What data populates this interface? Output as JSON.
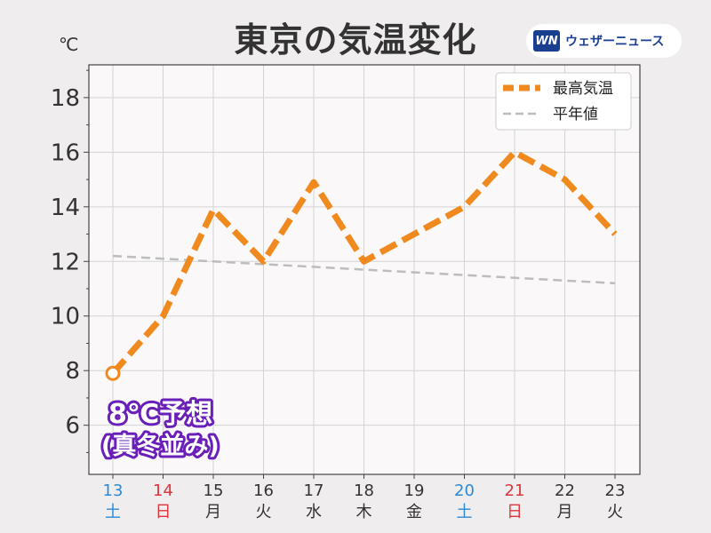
{
  "title": "東京の気温変化",
  "unit": "℃",
  "brand": {
    "logo": "WN",
    "name": "ウェザーニュース"
  },
  "colors": {
    "max_line": "#f08a1e",
    "normal_line": "#bdbdbd",
    "saturday": "#2a8ad6",
    "sunday": "#e0343c",
    "weekday": "#333333",
    "annotation_outline": "#6a1fb8"
  },
  "annotation": {
    "line1": "8℃予想",
    "line2": "(真冬並み)"
  },
  "chart_data": {
    "type": "line",
    "title": "東京の気温変化",
    "ylabel": "℃",
    "ylim": [
      4.2,
      19.2
    ],
    "yticks": [
      6,
      8,
      10,
      12,
      14,
      16,
      18
    ],
    "grid": true,
    "legend_position": "top-right",
    "categories": [
      "13",
      "14",
      "15",
      "16",
      "17",
      "18",
      "19",
      "20",
      "21",
      "22",
      "23"
    ],
    "weekdays": [
      "土",
      "日",
      "月",
      "火",
      "水",
      "木",
      "金",
      "土",
      "日",
      "月",
      "火"
    ],
    "day_types": [
      "sat",
      "sun",
      "weekday",
      "weekday",
      "weekday",
      "weekday",
      "weekday",
      "sat",
      "sun",
      "weekday",
      "weekday"
    ],
    "series": [
      {
        "name": "最高気温",
        "values": [
          7.9,
          10.0,
          13.9,
          12.0,
          14.9,
          12.0,
          13.0,
          14.0,
          16.0,
          15.0,
          13.0
        ]
      },
      {
        "name": "平年値",
        "values": [
          12.2,
          12.1,
          12.0,
          11.9,
          11.8,
          11.7,
          11.6,
          11.5,
          11.4,
          11.3,
          11.2
        ]
      }
    ]
  }
}
